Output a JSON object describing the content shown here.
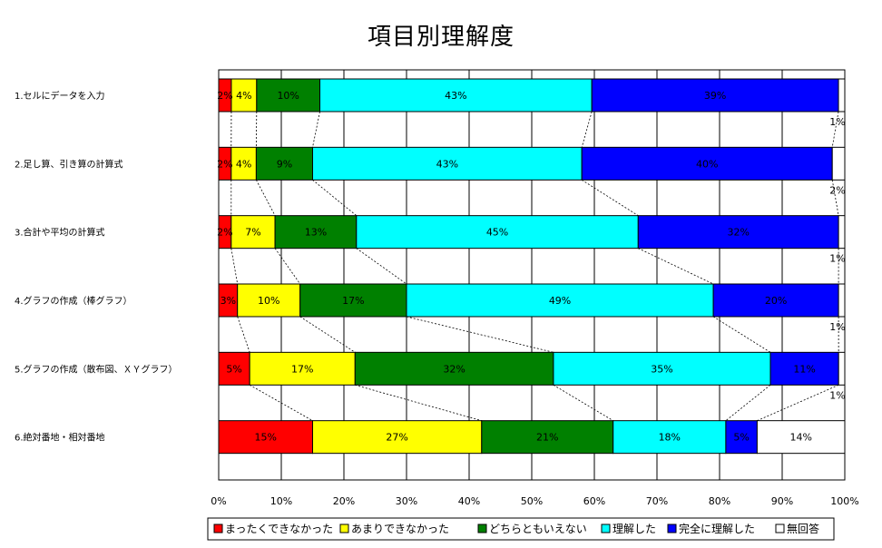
{
  "chart_data": {
    "type": "bar",
    "orientation": "horizontal",
    "stacked": "percent",
    "title": "項目別理解度",
    "categories": [
      "1.セルにデータを入力",
      "2.足し算、引き算の計算式",
      "3.合計や平均の計算式",
      "4.グラフの作成（棒グラフ）",
      "5.グラフの作成（散布図、ＸＹグラフ）",
      "6.絶対番地・相対番地"
    ],
    "series": [
      {
        "name": "まったくできなかった",
        "color": "#ff0000",
        "values": [
          2,
          2,
          2,
          3,
          5,
          15
        ]
      },
      {
        "name": "あまりできなかった",
        "color": "#ffff00",
        "values": [
          4,
          4,
          7,
          10,
          17,
          27
        ]
      },
      {
        "name": "どちらともいえない",
        "color": "#008000",
        "values": [
          10,
          9,
          13,
          17,
          32,
          21
        ]
      },
      {
        "name": "理解した",
        "color": "#00ffff",
        "values": [
          43,
          43,
          45,
          49,
          35,
          18
        ]
      },
      {
        "name": "完全に理解した",
        "color": "#0000ff",
        "values": [
          39,
          40,
          32,
          20,
          11,
          5
        ]
      },
      {
        "name": "無回答",
        "color": "#ffffff",
        "values": [
          1,
          2,
          1,
          1,
          1,
          14
        ]
      }
    ],
    "xlim": [
      0,
      100
    ],
    "x_ticks": [
      "0%",
      "10%",
      "20%",
      "30%",
      "40%",
      "50%",
      "60%",
      "70%",
      "80%",
      "90%",
      "100%"
    ],
    "grid": "vertical",
    "series_lines": true,
    "legend": "bottom"
  }
}
